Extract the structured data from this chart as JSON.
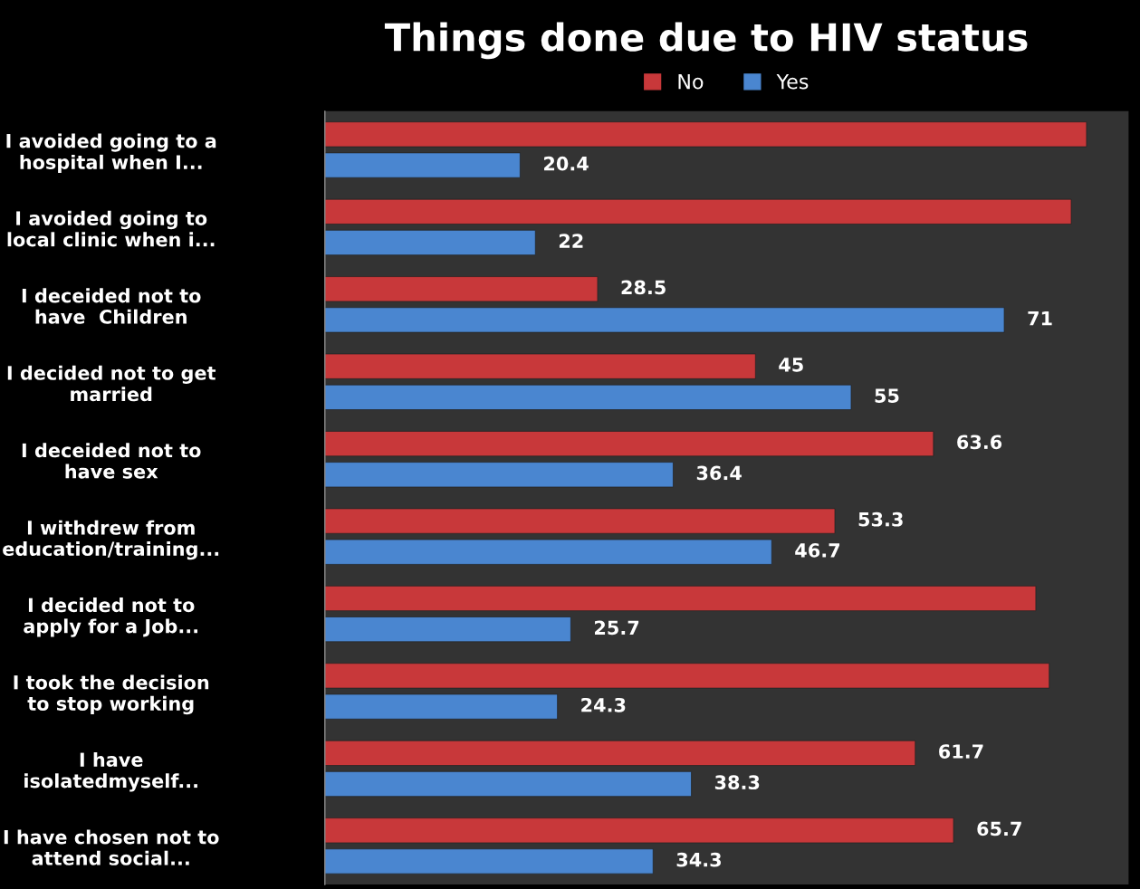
{
  "chart_data": {
    "type": "bar",
    "orientation": "horizontal",
    "title": "Things done due to HIV status",
    "categories": [
      "I avoided going to a\nhospital when I...",
      "I avoided going to\nlocal clinic when i...",
      "I deceided not to\nhave  Children",
      "I decided not to get\nmarried",
      "I deceided not to\nhave sex",
      "I withdrew from\neducation/training...",
      "I decided not to\napply for a Job...",
      "I took the decision\nto stop working",
      "I have\nisolatedmyself...",
      "I have chosen not to\nattend social..."
    ],
    "series": [
      {
        "name": "No",
        "color": "#c8383a",
        "values": [
          79.6,
          78,
          28.5,
          45,
          63.6,
          53.3,
          74.3,
          75.7,
          61.7,
          65.7
        ],
        "value_labels": [
          null,
          null,
          "28.5",
          "45",
          "63.6",
          "53.3",
          null,
          null,
          "61.7",
          "65.7"
        ]
      },
      {
        "name": "Yes",
        "color": "#4a86d0",
        "values": [
          20.4,
          22,
          71,
          55,
          36.4,
          46.7,
          25.7,
          24.3,
          38.3,
          34.3
        ],
        "value_labels": [
          "20.4",
          "22",
          "71",
          "55",
          "36.4",
          "46.7",
          "25.7",
          "24.3",
          "38.3",
          "34.3"
        ]
      }
    ],
    "xlim": [
      0,
      84
    ],
    "tick_labels": "y",
    "legend": "top",
    "grid": false
  }
}
